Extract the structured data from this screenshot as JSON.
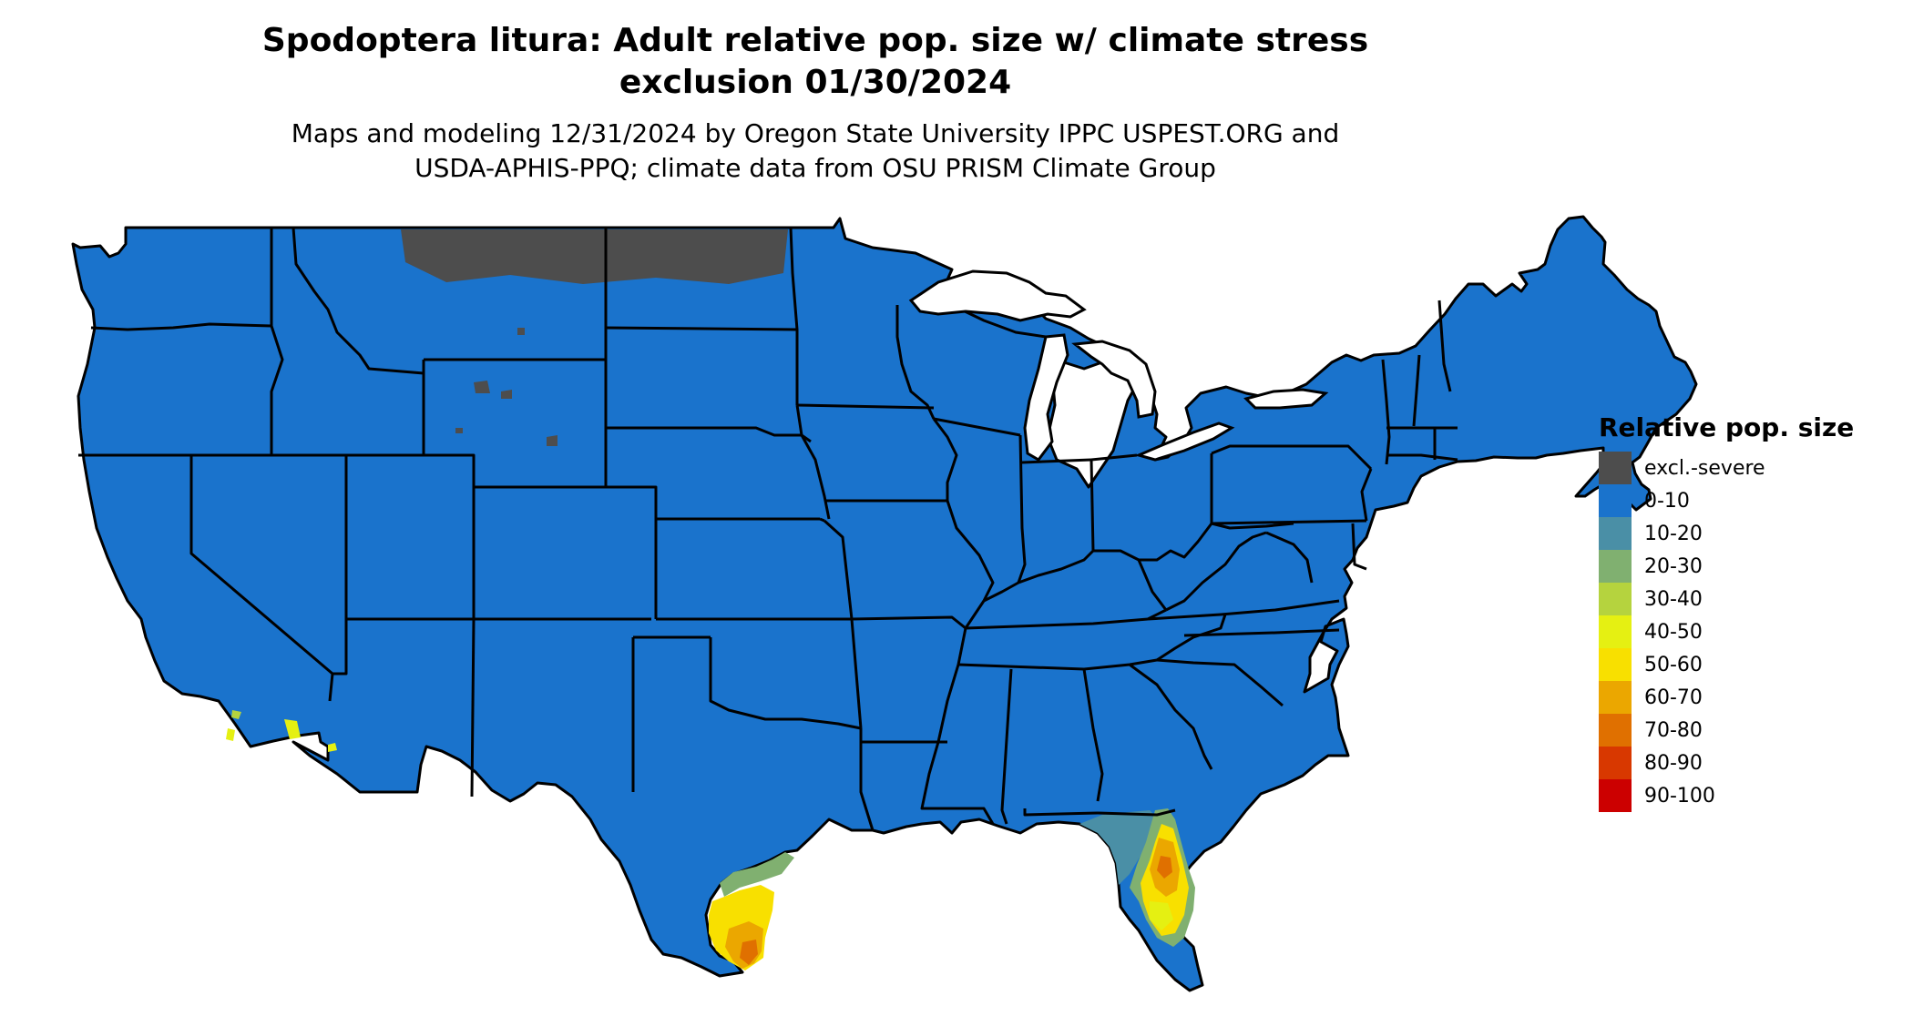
{
  "title_line1": "Spodoptera litura: Adult relative pop. size w/ climate stress",
  "title_line2": "exclusion 01/30/2024",
  "subtitle_line1": "Maps and modeling 12/31/2024 by Oregon State University IPPC USPEST.ORG and",
  "subtitle_line2": "USDA-APHIS-PPQ; climate data from OSU PRISM Climate Group",
  "legend": {
    "title": "Relative pop. size",
    "items": [
      {
        "label": "excl.-severe",
        "color": "#4d4d4d"
      },
      {
        "label": "0-10",
        "color": "#1a73cc"
      },
      {
        "label": "10-20",
        "color": "#4a8fa6"
      },
      {
        "label": "20-30",
        "color": "#80b070"
      },
      {
        "label": "30-40",
        "color": "#b5d33e"
      },
      {
        "label": "40-50",
        "color": "#e5f012"
      },
      {
        "label": "50-60",
        "color": "#f8e000"
      },
      {
        "label": "60-70",
        "color": "#eba700"
      },
      {
        "label": "70-80",
        "color": "#e07000"
      },
      {
        "label": "80-90",
        "color": "#d83800"
      },
      {
        "label": "90-100",
        "color": "#cc0000"
      }
    ]
  },
  "colors": {
    "land": "#1a73cc",
    "excluded": "#4d4d4d",
    "borders": "#000000"
  }
}
